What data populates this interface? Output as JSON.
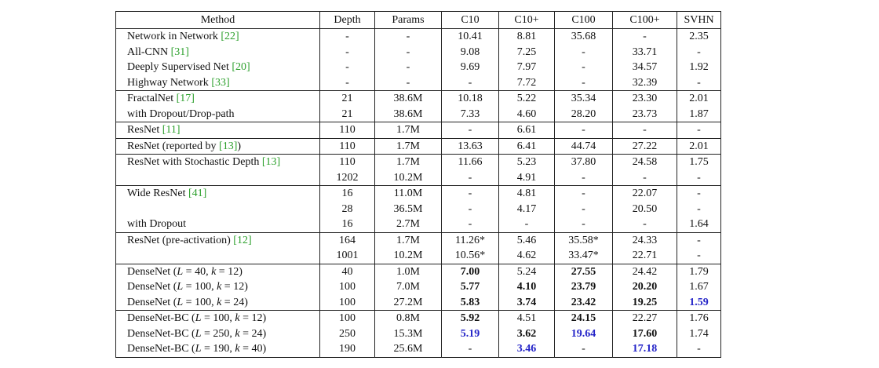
{
  "table": {
    "header": [
      "Method",
      "Depth",
      "Params",
      "C10",
      "C10+",
      "C100",
      "C100+",
      "SVHN"
    ],
    "groups": [
      {
        "rows": [
          {
            "method": [
              {
                "text": "Network in Network "
              },
              {
                "text": "[22]",
                "style": "ref"
              }
            ],
            "values": [
              "-",
              "-",
              "10.41",
              "8.81",
              "35.68",
              "-",
              "2.35"
            ]
          },
          {
            "method": [
              {
                "text": "All-CNN "
              },
              {
                "text": "[31]",
                "style": "ref"
              }
            ],
            "values": [
              "-",
              "-",
              "9.08",
              "7.25",
              "-",
              "33.71",
              "-"
            ]
          },
          {
            "method": [
              {
                "text": "Deeply Supervised Net "
              },
              {
                "text": "[20]",
                "style": "ref"
              }
            ],
            "values": [
              "-",
              "-",
              "9.69",
              "7.97",
              "-",
              "34.57",
              "1.92"
            ]
          },
          {
            "method": [
              {
                "text": "Highway Network "
              },
              {
                "text": "[33]",
                "style": "ref"
              }
            ],
            "values": [
              "-",
              "-",
              "-",
              "7.72",
              "-",
              "32.39",
              "-"
            ]
          }
        ]
      },
      {
        "rows": [
          {
            "method": [
              {
                "text": "FractalNet "
              },
              {
                "text": "[17]",
                "style": "ref"
              }
            ],
            "values": [
              "21",
              "38.6M",
              "10.18",
              "5.22",
              "35.34",
              "23.30",
              "2.01"
            ]
          },
          {
            "method": [
              {
                "text": "with Dropout/Drop-path"
              }
            ],
            "values": [
              "21",
              "38.6M",
              "7.33",
              "4.60",
              "28.20",
              "23.73",
              "1.87"
            ]
          }
        ]
      },
      {
        "rows": [
          {
            "method": [
              {
                "text": "ResNet "
              },
              {
                "text": "[11]",
                "style": "ref"
              }
            ],
            "values": [
              "110",
              "1.7M",
              "-",
              "6.61",
              "-",
              "-",
              "-"
            ]
          }
        ]
      },
      {
        "rows": [
          {
            "method": [
              {
                "text": "ResNet (reported by "
              },
              {
                "text": "[13]",
                "style": "ref"
              },
              {
                "text": ")"
              }
            ],
            "values": [
              "110",
              "1.7M",
              "13.63",
              "6.41",
              "44.74",
              "27.22",
              "2.01"
            ]
          }
        ]
      },
      {
        "rows": [
          {
            "method": [
              {
                "text": "ResNet with Stochastic Depth "
              },
              {
                "text": "[13]",
                "style": "ref"
              }
            ],
            "values": [
              "110",
              "1.7M",
              "11.66",
              "5.23",
              "37.80",
              "24.58",
              "1.75"
            ]
          },
          {
            "method": [],
            "values": [
              "1202",
              "10.2M",
              "-",
              "4.91",
              "-",
              "-",
              "-"
            ]
          }
        ]
      },
      {
        "rows": [
          {
            "method": [
              {
                "text": "Wide ResNet "
              },
              {
                "text": "[41]",
                "style": "ref"
              }
            ],
            "values": [
              "16",
              "11.0M",
              "-",
              "4.81",
              "-",
              "22.07",
              "-"
            ]
          },
          {
            "method": [],
            "values": [
              "28",
              "36.5M",
              "-",
              "4.17",
              "-",
              "20.50",
              "-"
            ]
          },
          {
            "method": [
              {
                "text": "with Dropout"
              }
            ],
            "values": [
              "16",
              "2.7M",
              "-",
              "-",
              "-",
              "-",
              "1.64"
            ]
          }
        ]
      },
      {
        "rows": [
          {
            "method": [
              {
                "text": "ResNet (pre-activation) "
              },
              {
                "text": "[12]",
                "style": "ref"
              }
            ],
            "values": [
              "164",
              "1.7M",
              "11.26*",
              "5.46",
              "35.58*",
              "24.33",
              "-"
            ]
          },
          {
            "method": [],
            "values": [
              "1001",
              "10.2M",
              "10.56*",
              "4.62",
              "33.47*",
              "22.71",
              "-"
            ]
          }
        ]
      },
      {
        "rows": [
          {
            "method": [
              {
                "text": "DenseNet ("
              },
              {
                "text": "L",
                "style": "math"
              },
              {
                "text": " = 40, "
              },
              {
                "text": "k",
                "style": "math"
              },
              {
                "text": " = 12)"
              }
            ],
            "values": [
              "40",
              "1.0M",
              "7.00",
              "5.24",
              "27.55",
              "24.42",
              "1.79"
            ],
            "bold": [
              2,
              4
            ]
          },
          {
            "method": [
              {
                "text": "DenseNet ("
              },
              {
                "text": "L",
                "style": "math"
              },
              {
                "text": " = 100, "
              },
              {
                "text": "k",
                "style": "math"
              },
              {
                "text": " = 12)"
              }
            ],
            "values": [
              "100",
              "7.0M",
              "5.77",
              "4.10",
              "23.79",
              "20.20",
              "1.67"
            ],
            "bold": [
              2,
              3,
              4,
              5
            ]
          },
          {
            "method": [
              {
                "text": "DenseNet ("
              },
              {
                "text": "L",
                "style": "math"
              },
              {
                "text": " = 100, "
              },
              {
                "text": "k",
                "style": "math"
              },
              {
                "text": " = 24)"
              }
            ],
            "values": [
              "100",
              "27.2M",
              "5.83",
              "3.74",
              "23.42",
              "19.25",
              "1.59"
            ],
            "bold": [
              2,
              3,
              4,
              5,
              6
            ],
            "blue": [
              6
            ]
          }
        ]
      },
      {
        "rows": [
          {
            "method": [
              {
                "text": "DenseNet-BC ("
              },
              {
                "text": "L",
                "style": "math"
              },
              {
                "text": " = 100, "
              },
              {
                "text": "k",
                "style": "math"
              },
              {
                "text": " = 12)"
              }
            ],
            "values": [
              "100",
              "0.8M",
              "5.92",
              "4.51",
              "24.15",
              "22.27",
              "1.76"
            ],
            "bold": [
              2,
              4
            ]
          },
          {
            "method": [
              {
                "text": "DenseNet-BC ("
              },
              {
                "text": "L",
                "style": "math"
              },
              {
                "text": " = 250, "
              },
              {
                "text": "k",
                "style": "math"
              },
              {
                "text": " = 24)"
              }
            ],
            "values": [
              "250",
              "15.3M",
              "5.19",
              "3.62",
              "19.64",
              "17.60",
              "1.74"
            ],
            "bold": [
              2,
              3,
              4,
              5
            ],
            "blue": [
              2,
              4
            ]
          },
          {
            "method": [
              {
                "text": "DenseNet-BC ("
              },
              {
                "text": "L",
                "style": "math"
              },
              {
                "text": " = 190, "
              },
              {
                "text": "k",
                "style": "math"
              },
              {
                "text": " = 40)"
              }
            ],
            "values": [
              "190",
              "25.6M",
              "-",
              "3.46",
              "-",
              "17.18",
              "-"
            ],
            "bold": [
              3,
              5
            ],
            "blue": [
              3,
              5
            ]
          }
        ]
      }
    ]
  }
}
